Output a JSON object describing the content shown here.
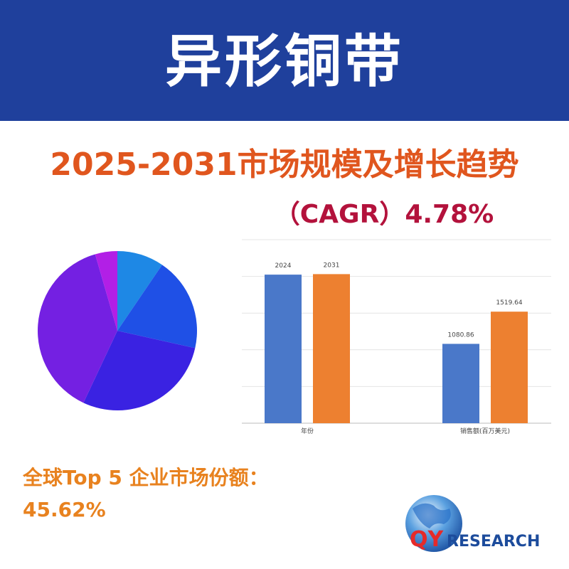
{
  "header": {
    "title": "异形铜带"
  },
  "subtitle": "2025-2031市场规模及增长趋势",
  "cagr": "（CAGR）4.78%",
  "chart_data": [
    {
      "type": "pie",
      "values": [
        9.5,
        19,
        28.5,
        38.5,
        4.5
      ],
      "colors": [
        "#1e88e5",
        "#1f50e6",
        "#3a22e2",
        "#7420e2",
        "#b21fe6"
      ]
    },
    {
      "type": "bar",
      "categories": [
        "年份",
        "销售额(百万美元)"
      ],
      "series": [
        {
          "color": "#4a78c9",
          "values": [
            2024,
            1080.86
          ]
        },
        {
          "color": "#ed8030",
          "values": [
            2031,
            1519.64
          ]
        }
      ],
      "ylim": [
        0,
        2500
      ],
      "yticks": [
        0,
        500,
        1000,
        1500,
        2000,
        2500
      ],
      "grid": true
    }
  ],
  "share_label": "全球Top 5 企业市场份额：",
  "share_value": "45.62%",
  "logo": {
    "mark": "QY",
    "text": "RESEARCH"
  }
}
